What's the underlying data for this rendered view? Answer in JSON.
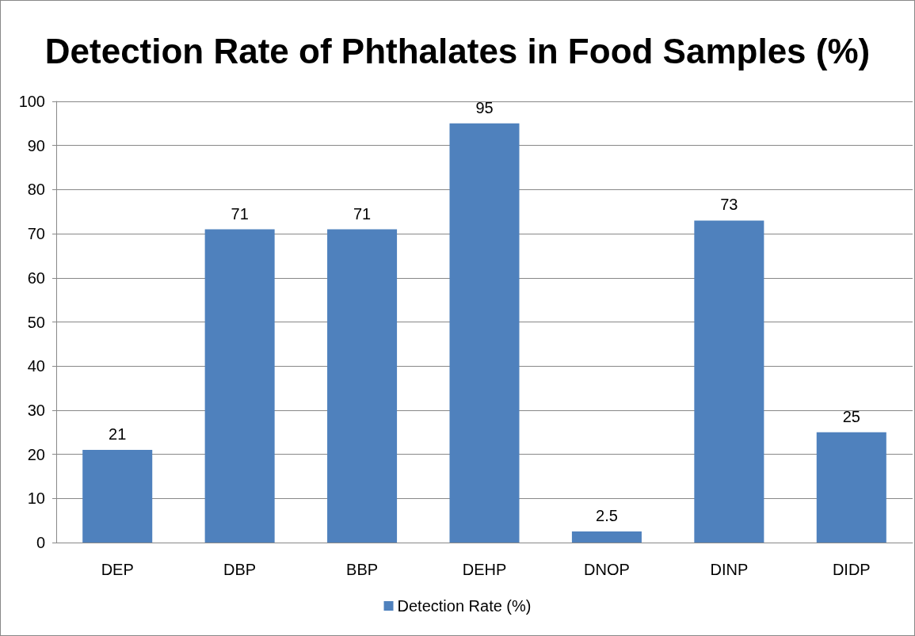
{
  "chart_data": {
    "type": "bar",
    "title": "Detection Rate of Phthalates in Food Samples (%)",
    "categories": [
      "DEP",
      "DBP",
      "BBP",
      "DEHP",
      "DNOP",
      "DINP",
      "DIDP"
    ],
    "series": [
      {
        "name": "Detection Rate (%)",
        "color": "#4f81bd",
        "values": [
          21,
          71,
          71,
          95,
          2.5,
          73,
          25
        ]
      }
    ],
    "ylim": [
      0,
      100
    ],
    "yticks": [
      0,
      10,
      20,
      30,
      40,
      50,
      60,
      70,
      80,
      90,
      100
    ],
    "grid": "y",
    "data_labels": true,
    "legend": "bottom"
  }
}
